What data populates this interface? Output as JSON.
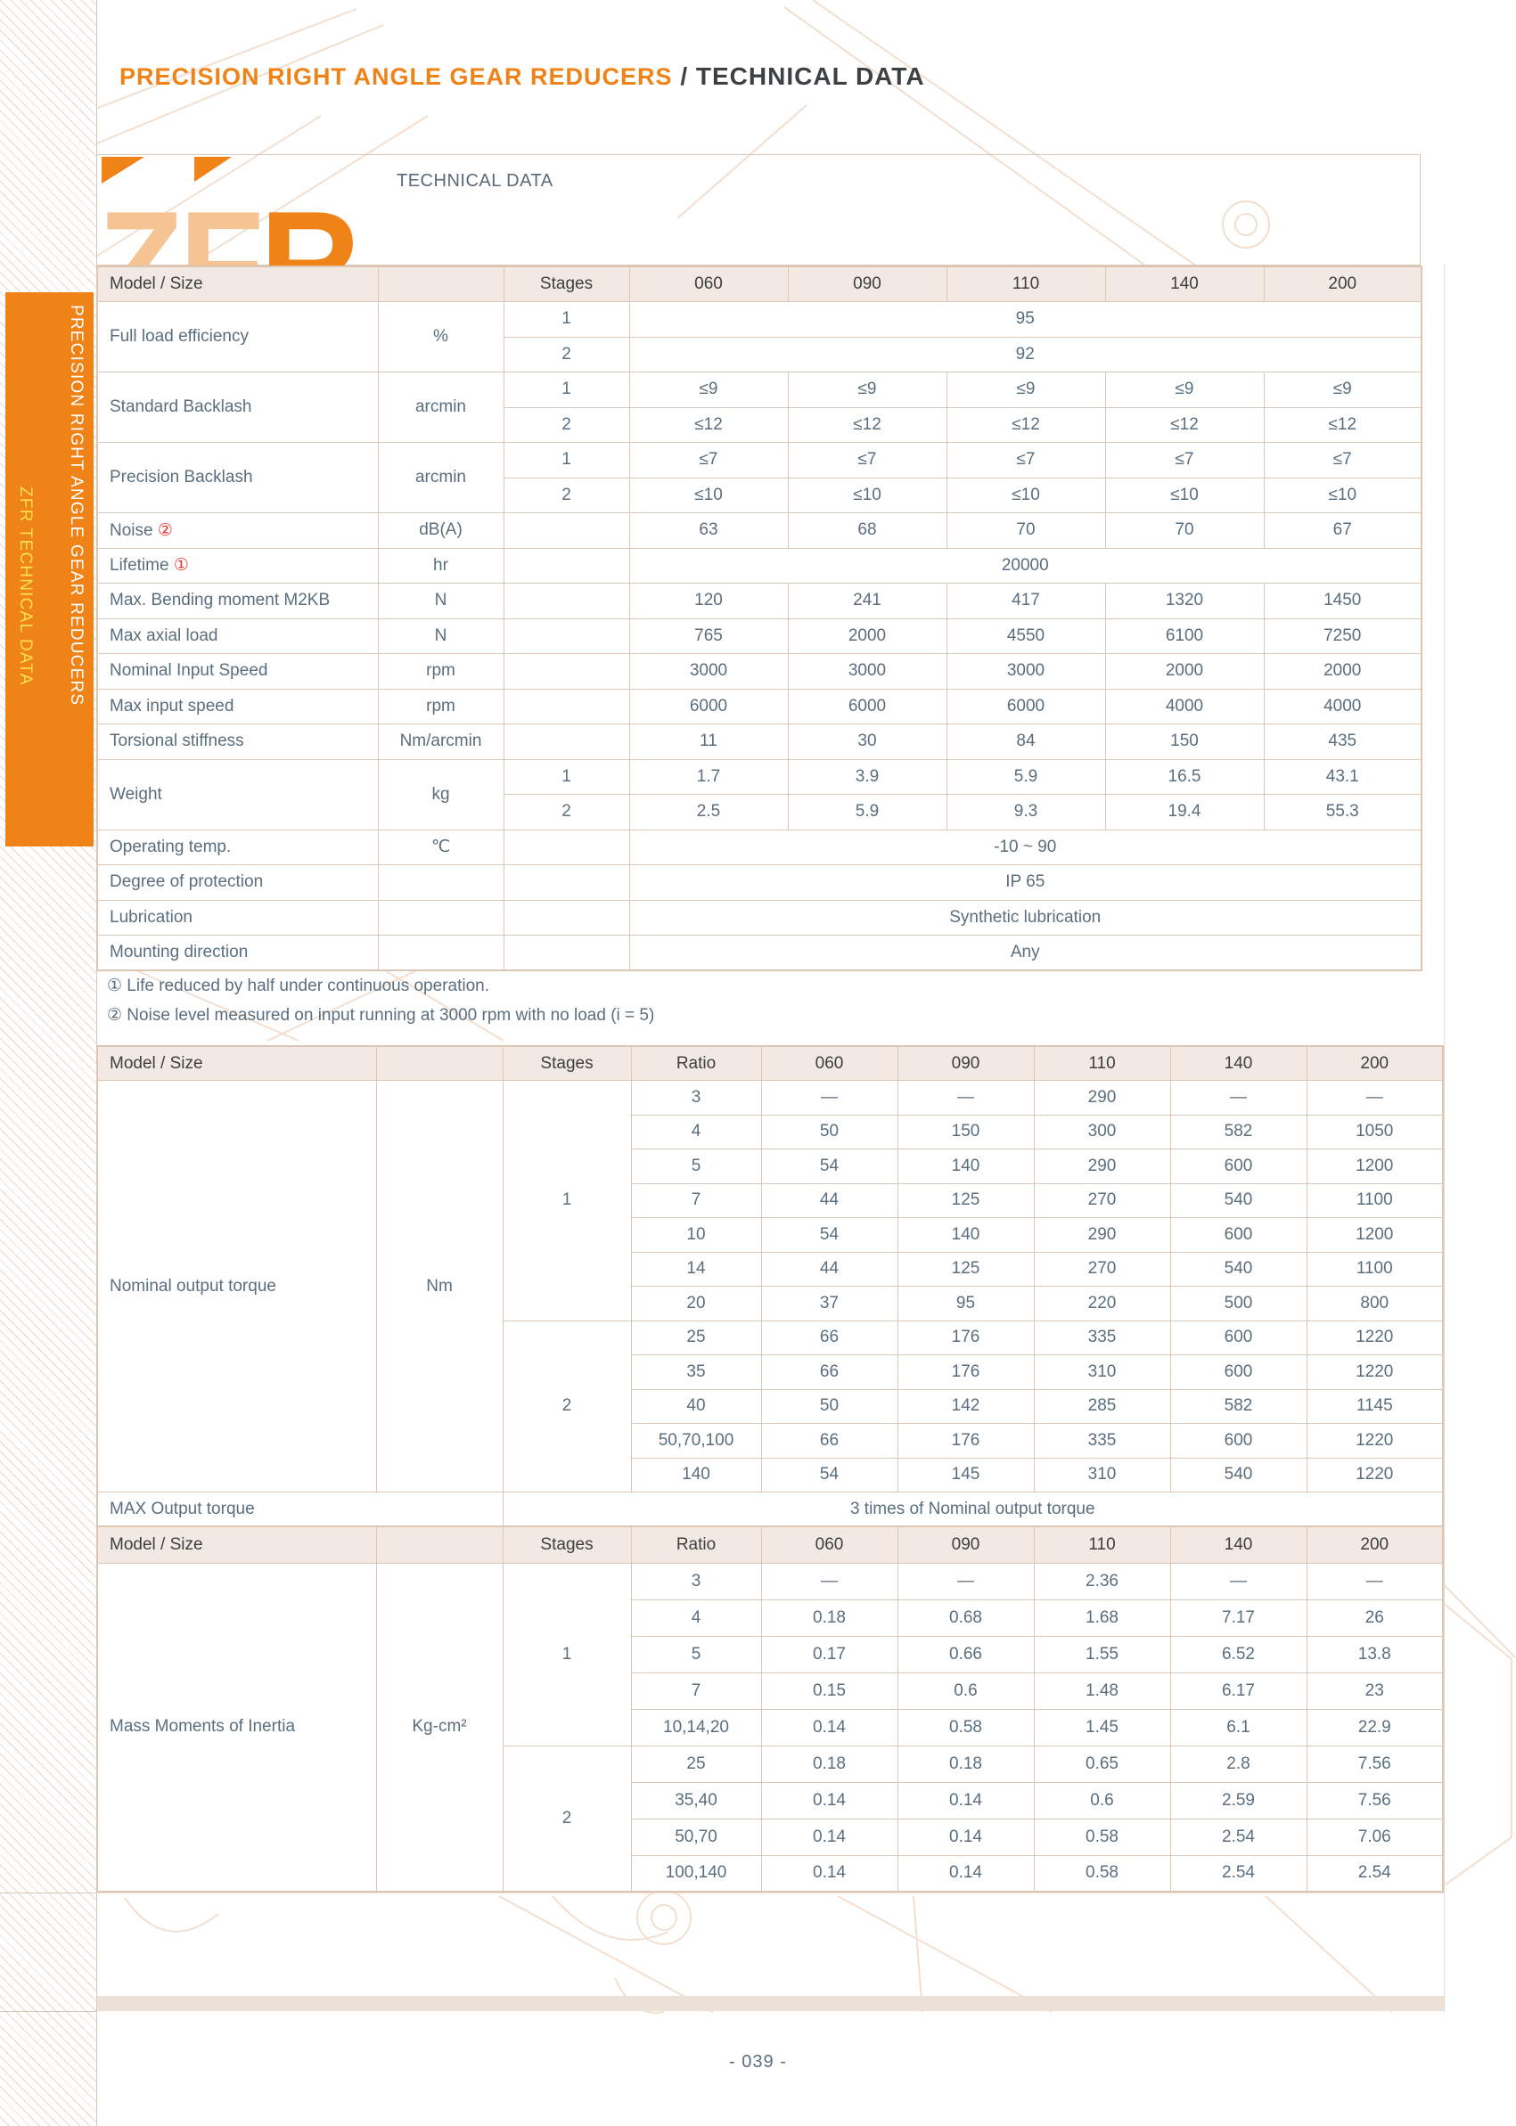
{
  "title": {
    "orange": "PRECISION RIGHT ANGLE GEAR REDUCERS",
    "sep": " / ",
    "dark": "TECHNICAL DATA"
  },
  "sidebar": {
    "line1": "PRECISION RIGHT ANGLE GEAR REDUCERS",
    "line2": "ZFR TECHNICAL DATA"
  },
  "logo": {
    "z": "Z",
    "f": "F",
    "r": "R",
    "label": "TECHNICAL DATA"
  },
  "colors": {
    "accent": "#ef8318",
    "light": "#f6c492",
    "headbg": "#f2eae2",
    "border": "#dcc6b5",
    "text": "#5b6e7e",
    "marker": "#e0392f",
    "yellow": "#ffe14d",
    "band": "#ece1d8",
    "faint": "#f2dfd0"
  },
  "footnotes": [
    "① Life reduced by half under continuous operation.",
    "② Noise level measured on input running at 3000 rpm with no load (i = 5)"
  ],
  "footer": {
    "page_number": "- 039 -"
  },
  "tables": {
    "specs": {
      "widths": [
        315,
        141,
        141,
        178,
        178,
        178,
        178,
        177
      ],
      "header": [
        "Model / Size",
        "",
        "Stages",
        "060",
        "090",
        "110",
        "140",
        "200"
      ],
      "rows": [
        [
          {
            "t": "Full load efficiency",
            "rs": 2,
            "c": "lbl"
          },
          {
            "t": "%",
            "rs": 2
          },
          {
            "t": "1"
          },
          {
            "t": "95",
            "cs": 5
          }
        ],
        [
          {
            "t": "2"
          },
          {
            "t": "92",
            "cs": 5
          }
        ],
        [
          {
            "t": "Standard Backlash",
            "rs": 2,
            "c": "lbl"
          },
          {
            "t": "arcmin",
            "rs": 2
          },
          {
            "t": "1"
          },
          {
            "t": "≤9"
          },
          {
            "t": "≤9"
          },
          {
            "t": "≤9"
          },
          {
            "t": "≤9"
          },
          {
            "t": "≤9"
          }
        ],
        [
          {
            "t": "2"
          },
          {
            "t": "≤12"
          },
          {
            "t": "≤12"
          },
          {
            "t": "≤12"
          },
          {
            "t": "≤12"
          },
          {
            "t": "≤12"
          }
        ],
        [
          {
            "t": "Precision Backlash",
            "rs": 2,
            "c": "lbl"
          },
          {
            "t": "arcmin",
            "rs": 2
          },
          {
            "t": "1"
          },
          {
            "t": "≤7"
          },
          {
            "t": "≤7"
          },
          {
            "t": "≤7"
          },
          {
            "t": "≤7"
          },
          {
            "t": "≤7"
          }
        ],
        [
          {
            "t": "2"
          },
          {
            "t": "≤10"
          },
          {
            "t": "≤10"
          },
          {
            "t": "≤10"
          },
          {
            "t": "≤10"
          },
          {
            "t": "≤10"
          }
        ],
        [
          {
            "t": "Noise ",
            "c": "lbl",
            "m": "②"
          },
          {
            "t": "dB(A)"
          },
          {
            "t": ""
          },
          {
            "t": "63"
          },
          {
            "t": "68"
          },
          {
            "t": "70"
          },
          {
            "t": "70"
          },
          {
            "t": "67"
          }
        ],
        [
          {
            "t": "Lifetime ",
            "c": "lbl",
            "m": "①"
          },
          {
            "t": "hr"
          },
          {
            "t": ""
          },
          {
            "t": "20000",
            "cs": 5
          }
        ],
        [
          {
            "t": "Max. Bending moment M2KB",
            "c": "lbl"
          },
          {
            "t": "N"
          },
          {
            "t": ""
          },
          {
            "t": "120"
          },
          {
            "t": "241"
          },
          {
            "t": "417"
          },
          {
            "t": "1320"
          },
          {
            "t": "1450"
          }
        ],
        [
          {
            "t": "Max axial load",
            "c": "lbl"
          },
          {
            "t": "N"
          },
          {
            "t": ""
          },
          {
            "t": "765"
          },
          {
            "t": "2000"
          },
          {
            "t": "4550"
          },
          {
            "t": "6100"
          },
          {
            "t": "7250"
          }
        ],
        [
          {
            "t": "Nominal Input Speed",
            "c": "lbl"
          },
          {
            "t": "rpm"
          },
          {
            "t": ""
          },
          {
            "t": "3000"
          },
          {
            "t": "3000"
          },
          {
            "t": "3000"
          },
          {
            "t": "2000"
          },
          {
            "t": "2000"
          }
        ],
        [
          {
            "t": "Max input speed",
            "c": "lbl"
          },
          {
            "t": "rpm"
          },
          {
            "t": ""
          },
          {
            "t": "6000"
          },
          {
            "t": "6000"
          },
          {
            "t": "6000"
          },
          {
            "t": "4000"
          },
          {
            "t": "4000"
          }
        ],
        [
          {
            "t": "Torsional stiffness",
            "c": "lbl"
          },
          {
            "t": "Nm/arcmin"
          },
          {
            "t": ""
          },
          {
            "t": "11"
          },
          {
            "t": "30"
          },
          {
            "t": "84"
          },
          {
            "t": "150"
          },
          {
            "t": "435"
          }
        ],
        [
          {
            "t": "Weight",
            "rs": 2,
            "c": "lbl"
          },
          {
            "t": "kg",
            "rs": 2
          },
          {
            "t": "1"
          },
          {
            "t": "1.7"
          },
          {
            "t": "3.9"
          },
          {
            "t": "5.9"
          },
          {
            "t": "16.5"
          },
          {
            "t": "43.1"
          }
        ],
        [
          {
            "t": "2"
          },
          {
            "t": "2.5"
          },
          {
            "t": "5.9"
          },
          {
            "t": "9.3"
          },
          {
            "t": "19.4"
          },
          {
            "t": "55.3"
          }
        ],
        [
          {
            "t": "Operating temp.",
            "c": "lbl"
          },
          {
            "t": "℃"
          },
          {
            "t": ""
          },
          {
            "t": "-10 ~ 90",
            "cs": 5
          }
        ],
        [
          {
            "t": "Degree of protection",
            "c": "lbl"
          },
          {
            "t": ""
          },
          {
            "t": ""
          },
          {
            "t": "IP 65",
            "cs": 5
          }
        ],
        [
          {
            "t": "Lubrication",
            "c": "lbl"
          },
          {
            "t": ""
          },
          {
            "t": ""
          },
          {
            "t": "Synthetic lubrication",
            "cs": 5
          }
        ],
        [
          {
            "t": "Mounting direction",
            "c": "lbl"
          },
          {
            "t": ""
          },
          {
            "t": ""
          },
          {
            "t": "Any",
            "cs": 5
          }
        ]
      ]
    },
    "torque": {
      "widths": [
        313,
        142,
        144,
        146,
        153,
        153,
        153,
        153,
        153
      ],
      "header": [
        "Model / Size",
        "",
        "Stages",
        "Ratio",
        "060",
        "090",
        "110",
        "140",
        "200"
      ],
      "rows": [
        [
          {
            "t": "Nominal output torque",
            "rs": 12,
            "c": "lbl"
          },
          {
            "t": "Nm",
            "rs": 12
          },
          {
            "t": "1",
            "rs": 7
          },
          {
            "t": "3"
          },
          {
            "t": "—"
          },
          {
            "t": "—"
          },
          {
            "t": "290"
          },
          {
            "t": "—"
          },
          {
            "t": "—"
          }
        ],
        [
          {
            "t": "4"
          },
          {
            "t": "50"
          },
          {
            "t": "150"
          },
          {
            "t": "300"
          },
          {
            "t": "582"
          },
          {
            "t": "1050"
          }
        ],
        [
          {
            "t": "5"
          },
          {
            "t": "54"
          },
          {
            "t": "140"
          },
          {
            "t": "290"
          },
          {
            "t": "600"
          },
          {
            "t": "1200"
          }
        ],
        [
          {
            "t": "7"
          },
          {
            "t": "44"
          },
          {
            "t": "125"
          },
          {
            "t": "270"
          },
          {
            "t": "540"
          },
          {
            "t": "1100"
          }
        ],
        [
          {
            "t": "10"
          },
          {
            "t": "54"
          },
          {
            "t": "140"
          },
          {
            "t": "290"
          },
          {
            "t": "600"
          },
          {
            "t": "1200"
          }
        ],
        [
          {
            "t": "14"
          },
          {
            "t": "44"
          },
          {
            "t": "125"
          },
          {
            "t": "270"
          },
          {
            "t": "540"
          },
          {
            "t": "1100"
          }
        ],
        [
          {
            "t": "20"
          },
          {
            "t": "37"
          },
          {
            "t": "95"
          },
          {
            "t": "220"
          },
          {
            "t": "500"
          },
          {
            "t": "800"
          }
        ],
        [
          {
            "t": "2",
            "rs": 5
          },
          {
            "t": "25"
          },
          {
            "t": "66"
          },
          {
            "t": "176"
          },
          {
            "t": "335"
          },
          {
            "t": "600"
          },
          {
            "t": "1220"
          }
        ],
        [
          {
            "t": "35"
          },
          {
            "t": "66"
          },
          {
            "t": "176"
          },
          {
            "t": "310"
          },
          {
            "t": "600"
          },
          {
            "t": "1220"
          }
        ],
        [
          {
            "t": "40"
          },
          {
            "t": "50"
          },
          {
            "t": "142"
          },
          {
            "t": "285"
          },
          {
            "t": "582"
          },
          {
            "t": "1145"
          }
        ],
        [
          {
            "t": "50,70,100"
          },
          {
            "t": "66"
          },
          {
            "t": "176"
          },
          {
            "t": "335"
          },
          {
            "t": "600"
          },
          {
            "t": "1220"
          }
        ],
        [
          {
            "t": "140"
          },
          {
            "t": "54"
          },
          {
            "t": "145"
          },
          {
            "t": "310"
          },
          {
            "t": "540"
          },
          {
            "t": "1220"
          }
        ],
        [
          {
            "t": "MAX Output torque",
            "cs": 2,
            "c": "lbl"
          },
          {
            "t": "3 times of Nominal output torque",
            "cs": 7
          }
        ]
      ]
    },
    "inertia": {
      "widths": [
        313,
        142,
        144,
        146,
        153,
        153,
        153,
        153,
        153
      ],
      "header": [
        "Model / Size",
        "",
        "Stages",
        "Ratio",
        "060",
        "090",
        "110",
        "140",
        "200"
      ],
      "rows": [
        [
          {
            "t": "Mass Moments of Inertia",
            "rs": 9,
            "c": "lbl"
          },
          {
            "t": "Kg-cm²",
            "rs": 9
          },
          {
            "t": "1",
            "rs": 5
          },
          {
            "t": "3"
          },
          {
            "t": "—"
          },
          {
            "t": "—"
          },
          {
            "t": "2.36"
          },
          {
            "t": "—"
          },
          {
            "t": "—"
          }
        ],
        [
          {
            "t": "4"
          },
          {
            "t": "0.18"
          },
          {
            "t": "0.68"
          },
          {
            "t": "1.68"
          },
          {
            "t": "7.17"
          },
          {
            "t": "26"
          }
        ],
        [
          {
            "t": "5"
          },
          {
            "t": "0.17"
          },
          {
            "t": "0.66"
          },
          {
            "t": "1.55"
          },
          {
            "t": "6.52"
          },
          {
            "t": "13.8"
          }
        ],
        [
          {
            "t": "7"
          },
          {
            "t": "0.15"
          },
          {
            "t": "0.6"
          },
          {
            "t": "1.48"
          },
          {
            "t": "6.17"
          },
          {
            "t": "23"
          }
        ],
        [
          {
            "t": "10,14,20"
          },
          {
            "t": "0.14"
          },
          {
            "t": "0.58"
          },
          {
            "t": "1.45"
          },
          {
            "t": "6.1"
          },
          {
            "t": "22.9"
          }
        ],
        [
          {
            "t": "2",
            "rs": 4
          },
          {
            "t": "25"
          },
          {
            "t": "0.18"
          },
          {
            "t": "0.18"
          },
          {
            "t": "0.65"
          },
          {
            "t": "2.8"
          },
          {
            "t": "7.56"
          }
        ],
        [
          {
            "t": "35,40"
          },
          {
            "t": "0.14"
          },
          {
            "t": "0.14"
          },
          {
            "t": "0.6"
          },
          {
            "t": "2.59"
          },
          {
            "t": "7.56"
          }
        ],
        [
          {
            "t": "50,70"
          },
          {
            "t": "0.14"
          },
          {
            "t": "0.14"
          },
          {
            "t": "0.58"
          },
          {
            "t": "2.54"
          },
          {
            "t": "7.06"
          }
        ],
        [
          {
            "t": "100,140"
          },
          {
            "t": "0.14"
          },
          {
            "t": "0.14"
          },
          {
            "t": "0.58"
          },
          {
            "t": "2.54"
          },
          {
            "t": "2.54"
          }
        ]
      ]
    }
  }
}
